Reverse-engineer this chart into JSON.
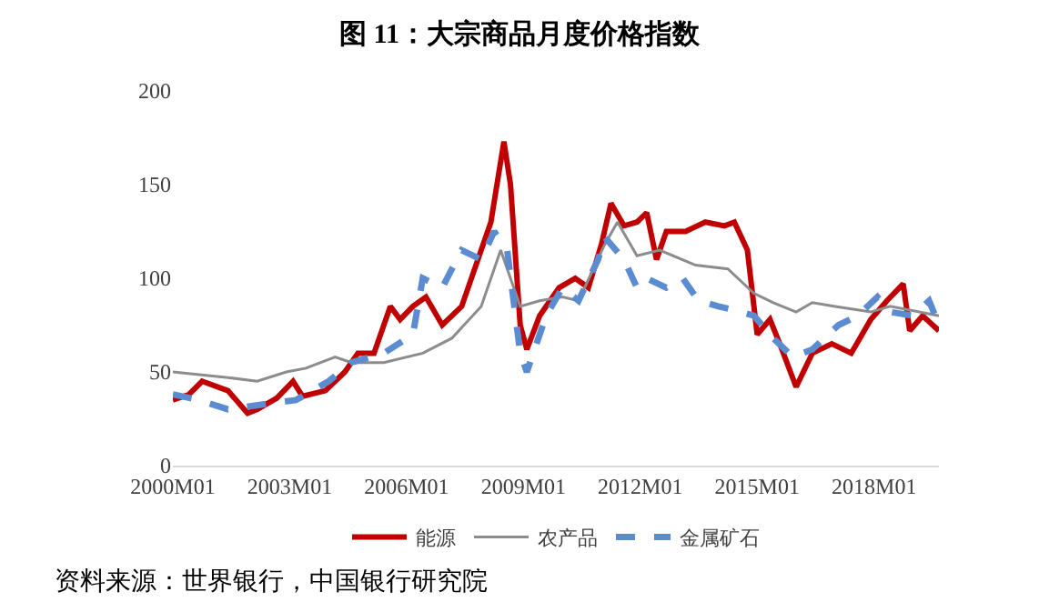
{
  "chart_data": {
    "type": "line",
    "title": "图 11：大宗商品月度价格指数",
    "annotations": [
      "资料来源：世界银行，中国银行研究院"
    ],
    "ylim": [
      0,
      200
    ],
    "yticks": [
      0,
      50,
      100,
      150,
      200
    ],
    "xticks": [
      {
        "value": "2000-01",
        "label": "2000M01"
      },
      {
        "value": "2003-01",
        "label": "2003M01"
      },
      {
        "value": "2006-01",
        "label": "2006M01"
      },
      {
        "value": "2009-01",
        "label": "2009M01"
      },
      {
        "value": "2012-01",
        "label": "2012M01"
      },
      {
        "value": "2015-01",
        "label": "2015M01"
      },
      {
        "value": "2018-01",
        "label": "2018M01"
      }
    ],
    "xlim": [
      "2000-01",
      "2019-09"
    ],
    "legend": "bottom",
    "series": [
      {
        "name": "能源",
        "color": "#c00000",
        "line_style": "solid",
        "x": [
          "2000-01",
          "2000-06",
          "2000-10",
          "2001-06",
          "2001-12",
          "2002-03",
          "2002-09",
          "2003-02",
          "2003-05",
          "2003-12",
          "2004-06",
          "2004-10",
          "2005-03",
          "2005-08",
          "2005-11",
          "2006-03",
          "2006-07",
          "2006-12",
          "2007-06",
          "2007-12",
          "2008-03",
          "2008-07",
          "2008-09",
          "2008-12",
          "2009-02",
          "2009-06",
          "2009-12",
          "2010-05",
          "2010-09",
          "2011-01",
          "2011-04",
          "2011-08",
          "2011-12",
          "2012-03",
          "2012-06",
          "2012-09",
          "2013-03",
          "2013-09",
          "2014-03",
          "2014-06",
          "2014-10",
          "2015-01",
          "2015-05",
          "2015-08",
          "2016-01",
          "2016-06",
          "2016-12",
          "2017-06",
          "2017-12",
          "2018-05",
          "2018-10",
          "2018-12",
          "2019-04",
          "2019-09"
        ],
        "values": [
          35,
          38,
          45,
          40,
          28,
          30,
          36,
          45,
          37,
          40,
          50,
          60,
          60,
          85,
          78,
          85,
          90,
          75,
          85,
          115,
          130,
          173,
          150,
          75,
          62,
          80,
          95,
          100,
          95,
          118,
          140,
          128,
          130,
          135,
          110,
          125,
          125,
          130,
          128,
          130,
          115,
          70,
          78,
          65,
          42,
          60,
          65,
          60,
          78,
          88,
          97,
          72,
          80,
          72
        ]
      },
      {
        "name": "农产品",
        "color": "#8c8c8c",
        "line_style": "solid",
        "x": [
          "2000-01",
          "2001-06",
          "2002-03",
          "2002-12",
          "2003-06",
          "2004-03",
          "2004-08",
          "2005-06",
          "2006-06",
          "2007-03",
          "2007-12",
          "2008-06",
          "2008-12",
          "2009-06",
          "2010-01",
          "2010-06",
          "2011-02",
          "2011-06",
          "2011-12",
          "2012-07",
          "2013-06",
          "2014-04",
          "2014-12",
          "2015-06",
          "2016-01",
          "2016-06",
          "2017-01",
          "2017-12",
          "2018-06",
          "2019-09"
        ],
        "values": [
          50,
          47,
          45,
          50,
          52,
          58,
          55,
          55,
          60,
          68,
          85,
          115,
          85,
          88,
          90,
          88,
          118,
          130,
          112,
          115,
          107,
          105,
          92,
          87,
          82,
          87,
          85,
          82,
          85,
          80
        ]
      },
      {
        "name": "金属矿石",
        "color": "#5b8bd0",
        "line_style": "dashed",
        "x": [
          "2000-01",
          "2000-09",
          "2001-06",
          "2002-06",
          "2003-03",
          "2004-01",
          "2004-08",
          "2005-06",
          "2006-03",
          "2006-06",
          "2006-12",
          "2007-06",
          "2007-12",
          "2008-04",
          "2008-08",
          "2008-12",
          "2009-02",
          "2009-08",
          "2010-01",
          "2010-06",
          "2010-12",
          "2011-02",
          "2011-08",
          "2011-12",
          "2012-03",
          "2012-09",
          "2013-02",
          "2013-07",
          "2014-01",
          "2014-06",
          "2014-12",
          "2015-06",
          "2015-12",
          "2016-06",
          "2017-02",
          "2017-08",
          "2018-02",
          "2018-06",
          "2019-01",
          "2019-06",
          "2019-09"
        ],
        "values": [
          38,
          35,
          30,
          33,
          35,
          45,
          55,
          60,
          70,
          100,
          95,
          115,
          110,
          125,
          115,
          60,
          50,
          80,
          95,
          88,
          110,
          122,
          110,
          95,
          100,
          95,
          100,
          88,
          85,
          83,
          80,
          68,
          58,
          62,
          75,
          80,
          90,
          82,
          80,
          88,
          75
        ]
      }
    ]
  }
}
